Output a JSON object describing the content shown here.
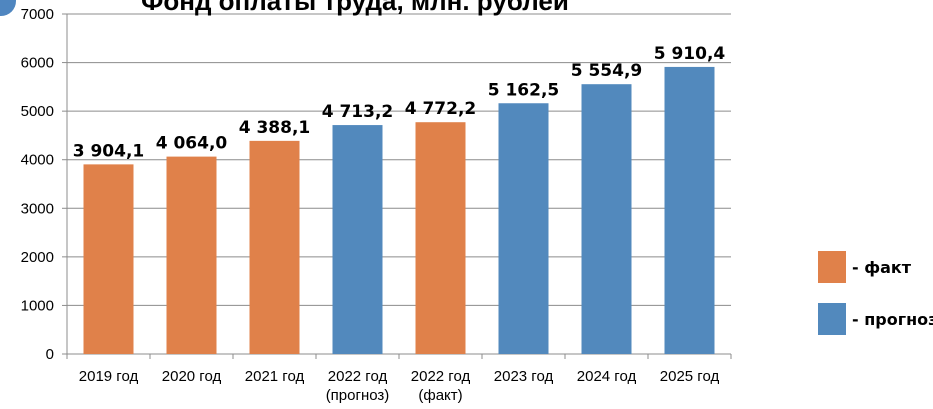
{
  "title": "Фонд оплаты труда, млн. рублей",
  "legend": [
    {
      "label": "- факт",
      "color": "#e0814a"
    },
    {
      "label": "- прогноз",
      "color": "#5289bd"
    }
  ],
  "chart_data": {
    "type": "bar",
    "title": "Фонд оплаты труда, млн. рублей",
    "categories": [
      "2019 год",
      "2020 год",
      "2021 год",
      "2022 год (прогноз)",
      "2022 год (факт)",
      "2023 год",
      "2024 год",
      "2025 год"
    ],
    "category_lines": [
      [
        "2019 год"
      ],
      [
        "2020 год"
      ],
      [
        "2021 год"
      ],
      [
        "2022 год",
        "(прогноз)"
      ],
      [
        "2022 год",
        "(факт)"
      ],
      [
        "2023 год"
      ],
      [
        "2024 год"
      ],
      [
        "2025 год"
      ]
    ],
    "values": [
      3904.1,
      4064.0,
      4388.1,
      4713.2,
      4772.2,
      5162.5,
      5554.9,
      5910.4
    ],
    "value_labels": [
      "3 904,1",
      "4 064,0",
      "4 388,1",
      "4 713,2",
      "4 772,2",
      "5 162,5",
      "5 554,9",
      "5 910,4"
    ],
    "kinds": [
      "факт",
      "факт",
      "факт",
      "прогноз",
      "факт",
      "прогноз",
      "прогноз",
      "прогноз"
    ],
    "kind_colors": {
      "факт": "#e0814a",
      "прогноз": "#5289bd"
    },
    "ylim": [
      0,
      7000
    ],
    "yticks": [
      0,
      1000,
      2000,
      3000,
      4000,
      5000,
      6000,
      7000
    ],
    "grid": true,
    "legend_position": "right"
  }
}
